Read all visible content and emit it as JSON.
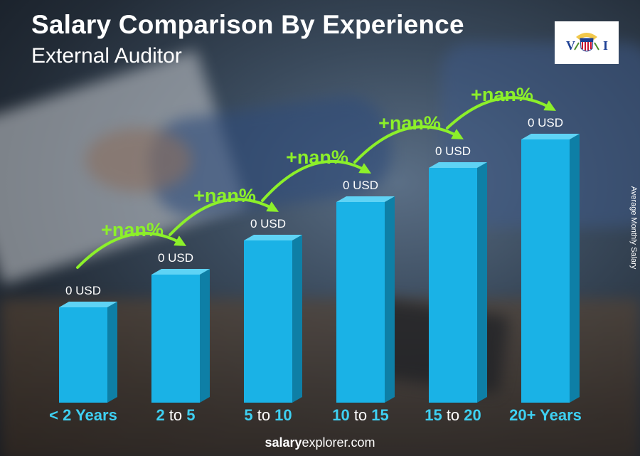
{
  "header": {
    "title": "Salary Comparison By Experience",
    "subtitle": "External Auditor"
  },
  "flag": {
    "letters": [
      "V",
      "I"
    ]
  },
  "chart_data": {
    "type": "bar",
    "title": "Salary Comparison By Experience",
    "subtitle": "External Auditor",
    "ylabel": "Average Monthly Salary",
    "categories": [
      {
        "pre": "< 2 Years",
        "to": "",
        "post": ""
      },
      {
        "pre": "2",
        "to": "to",
        "post": "5"
      },
      {
        "pre": "5",
        "to": "to",
        "post": "10"
      },
      {
        "pre": "10",
        "to": "to",
        "post": "15"
      },
      {
        "pre": "15",
        "to": "to",
        "post": "20"
      },
      {
        "pre": "20+ Years",
        "to": "",
        "post": ""
      }
    ],
    "values": [
      0,
      0,
      0,
      0,
      0,
      0
    ],
    "value_labels": [
      "0 USD",
      "0 USD",
      "0 USD",
      "0 USD",
      "0 USD",
      "0 USD"
    ],
    "growth_labels": [
      "+nan%",
      "+nan%",
      "+nan%",
      "+nan%",
      "+nan%"
    ],
    "colors": {
      "bar_front": "#1ab2e6",
      "bar_side": "#0e7fa6",
      "bar_top": "#5fd3f5",
      "growth": "#8cf02a",
      "category": "#3ed0f2"
    }
  },
  "footer": {
    "brand_bold": "salary",
    "brand_rest": "explorer.com"
  }
}
